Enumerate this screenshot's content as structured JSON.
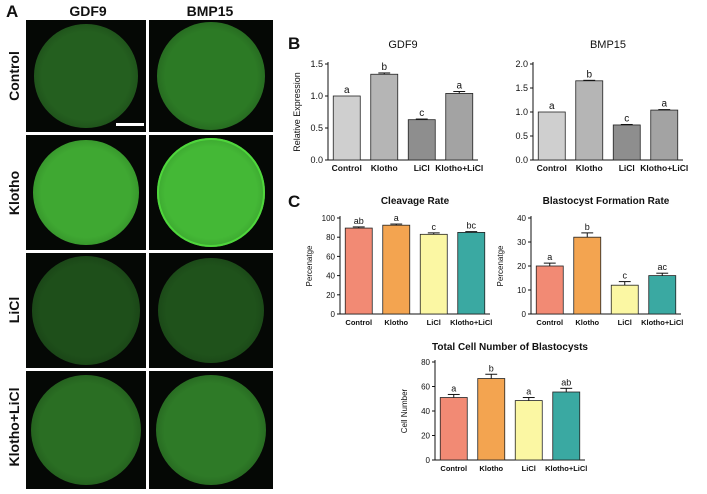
{
  "panels": {
    "a": "A",
    "b": "B",
    "c": "C"
  },
  "micrographs": {
    "columns": [
      "GDF9",
      "BMP15"
    ],
    "rows": [
      "Control",
      "Klotho",
      "LiCl",
      "Klotho+LiCl"
    ],
    "colors": {
      "bright": "#4fd63c",
      "dim": "#1f5e1a",
      "background": "#050805"
    }
  },
  "chart_data": [
    {
      "id": "gdf9",
      "type": "bar",
      "title": "GDF9",
      "ylabel": "Relative Expression",
      "xlabel": "",
      "categories": [
        "Control",
        "Klotho",
        "LiCl",
        "Klotho+LiCl"
      ],
      "values": [
        1.0,
        1.34,
        0.63,
        1.04
      ],
      "errors": [
        0.0,
        0.02,
        0.01,
        0.03
      ],
      "letters": [
        "a",
        "b",
        "c",
        "a"
      ],
      "ylim": [
        0,
        1.5
      ],
      "yticks": [
        "0.0",
        "0.5",
        "1.0",
        "1.5"
      ],
      "colors": [
        "#cfcfcf",
        "#b5b5b5",
        "#8e8e8e",
        "#a3a3a3"
      ]
    },
    {
      "id": "bmp15",
      "type": "bar",
      "title": "BMP15",
      "ylabel": "",
      "xlabel": "",
      "categories": [
        "Control",
        "Klotho",
        "LiCl",
        "Klotho+LiCl"
      ],
      "values": [
        1.0,
        1.65,
        0.73,
        1.04
      ],
      "errors": [
        0.0,
        0.01,
        0.01,
        0.01
      ],
      "letters": [
        "a",
        "b",
        "c",
        "a"
      ],
      "ylim": [
        0,
        2.0
      ],
      "yticks": [
        "0.0",
        "0.5",
        "1.0",
        "1.5",
        "2.0"
      ],
      "colors": [
        "#cfcfcf",
        "#b5b5b5",
        "#8e8e8e",
        "#a3a3a3"
      ]
    },
    {
      "id": "cleavage",
      "type": "bar",
      "title": "Cleavage Rate",
      "ylabel": "Percenatge",
      "xlabel": "",
      "categories": [
        "Control",
        "Klotho",
        "LiCl",
        "Klotho+LiCl"
      ],
      "values": [
        89.5,
        92.5,
        83.0,
        85.0
      ],
      "errors": [
        1.2,
        1.2,
        1.5,
        0.8
      ],
      "letters": [
        "ab",
        "a",
        "c",
        "bc"
      ],
      "ylim": [
        0,
        100
      ],
      "yticks": [
        "0",
        "20",
        "40",
        "60",
        "80",
        "100"
      ],
      "colors": [
        "#f28a74",
        "#f3a450",
        "#fbf7a3",
        "#3aa9a2"
      ]
    },
    {
      "id": "blastocyst",
      "type": "bar",
      "title": "Blastocyst Formation Rate",
      "ylabel": "Percenatge",
      "xlabel": "",
      "categories": [
        "Control",
        "Klotho",
        "LiCl",
        "Klotho+LiCl"
      ],
      "values": [
        20.0,
        32.0,
        12.0,
        16.0
      ],
      "errors": [
        1.2,
        1.8,
        1.5,
        1.0
      ],
      "letters": [
        "a",
        "b",
        "c",
        "ac"
      ],
      "ylim": [
        0,
        40
      ],
      "yticks": [
        "0",
        "10",
        "20",
        "30",
        "40"
      ],
      "colors": [
        "#f28a74",
        "#f3a450",
        "#fbf7a3",
        "#3aa9a2"
      ]
    },
    {
      "id": "cellnumber",
      "type": "bar",
      "title": "Total Cell Number of Blastocysts",
      "ylabel": "Cell Number",
      "xlabel": "",
      "categories": [
        "Control",
        "Klotho",
        "LiCl",
        "Klotho+LiCl"
      ],
      "values": [
        51.0,
        66.5,
        48.5,
        55.5
      ],
      "errors": [
        2.5,
        3.5,
        2.5,
        3.0
      ],
      "letters": [
        "a",
        "b",
        "a",
        "ab"
      ],
      "ylim": [
        0,
        80
      ],
      "yticks": [
        "0",
        "20",
        "40",
        "60",
        "80"
      ],
      "colors": [
        "#f28a74",
        "#f3a450",
        "#fbf7a3",
        "#3aa9a2"
      ]
    }
  ]
}
